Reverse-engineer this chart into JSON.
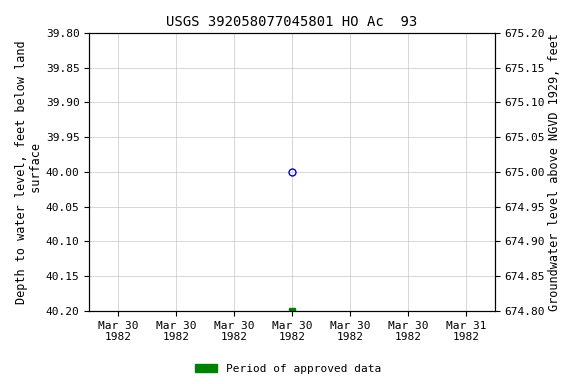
{
  "title": "USGS 392058077045801 HO Ac  93",
  "ylabel_left": "Depth to water level, feet below land\n surface",
  "ylabel_right": "Groundwater level above NGVD 1929, feet",
  "ylim_left": [
    39.8,
    40.2
  ],
  "ylim_right": [
    675.2,
    674.8
  ],
  "yticks_left": [
    39.8,
    39.85,
    39.9,
    39.95,
    40.0,
    40.05,
    40.1,
    40.15,
    40.2
  ],
  "yticks_right": [
    675.2,
    675.15,
    675.1,
    675.05,
    675.0,
    674.95,
    674.9,
    674.85,
    674.8
  ],
  "xtick_positions": [
    0,
    1,
    2,
    3,
    4,
    5,
    6
  ],
  "xtick_labels": [
    "Mar 30\n1982",
    "Mar 30\n1982",
    "Mar 30\n1982",
    "Mar 30\n1982",
    "Mar 30\n1982",
    "Mar 30\n1982",
    "Mar 31\n1982"
  ],
  "xlim": [
    -0.5,
    6.5
  ],
  "data_points": [
    {
      "x": 3,
      "depth": 40.0,
      "type": "provisional",
      "color": "#0000cc",
      "marker": "o",
      "filled": false,
      "markersize": 5
    },
    {
      "x": 3,
      "depth": 40.2,
      "type": "approved",
      "color": "#008000",
      "marker": "s",
      "filled": true,
      "markersize": 4
    }
  ],
  "background_color": "#ffffff",
  "plot_bg_color": "#ffffff",
  "grid_color": "#c8c8c8",
  "title_fontsize": 10,
  "axis_label_fontsize": 8.5,
  "tick_fontsize": 8,
  "legend_label": "Period of approved data",
  "legend_color": "#008000"
}
